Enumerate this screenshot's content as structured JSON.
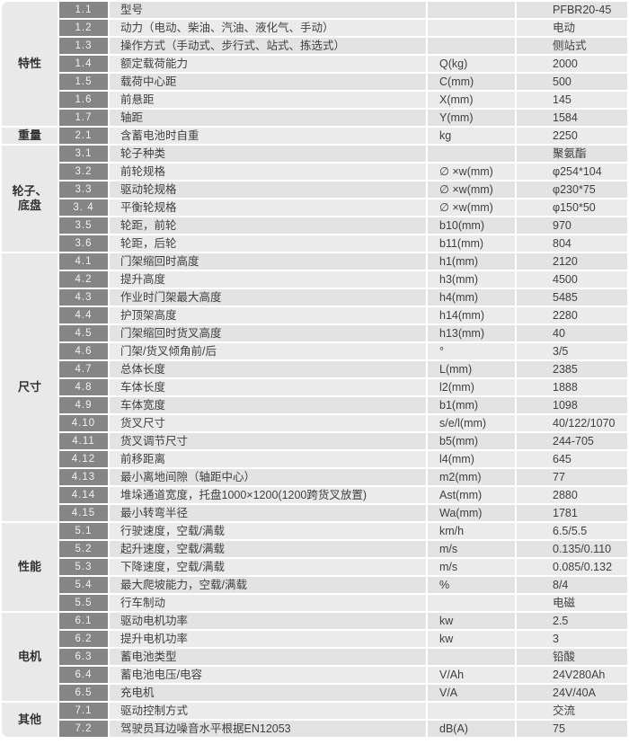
{
  "palette": {
    "row_dark": "#e3e3e3",
    "row_light": "#ebebeb",
    "category_bg": "#e9e9e9",
    "number_bg": "#858585",
    "number_text": "#f2f2f2",
    "text": "#3f3f3f",
    "page_bg": "#ffffff"
  },
  "spec_table": {
    "sections": [
      {
        "category": "特性",
        "rows": [
          {
            "no": "1.1",
            "desc": "型号",
            "unit": "",
            "value": "PFBR20-45"
          },
          {
            "no": "1.2",
            "desc": "动力（电动、柴油、汽油、液化气、手动）",
            "unit": "",
            "value": "电动"
          },
          {
            "no": "1.3",
            "desc": "操作方式（手动式、步行式、站式、拣选式）",
            "unit": "",
            "value": "侧站式"
          },
          {
            "no": "1.4",
            "desc": "额定载荷能力",
            "unit": "Q(kg)",
            "value": "2000"
          },
          {
            "no": "1.5",
            "desc": "载荷中心距",
            "unit": "C(mm)",
            "value": "500"
          },
          {
            "no": "1.6",
            "desc": "前悬距",
            "unit": "X(mm)",
            "value": "145"
          },
          {
            "no": "1.7",
            "desc": "轴距",
            "unit": "Y(mm)",
            "value": "1584"
          }
        ]
      },
      {
        "category": "重量",
        "rows": [
          {
            "no": "2.1",
            "desc": "含蓄电池时自重",
            "unit": "kg",
            "value": "2250"
          }
        ]
      },
      {
        "category": "轮子、\n底盘",
        "rows": [
          {
            "no": "3.1",
            "desc": "轮子种类",
            "unit": "",
            "value": "聚氨酯"
          },
          {
            "no": "3.2",
            "desc": "前轮规格",
            "unit": "∅ ×w(mm)",
            "value": "φ254*104"
          },
          {
            "no": "3.3",
            "desc": "驱动轮规格",
            "unit": "∅ ×w(mm)",
            "value": "φ230*75"
          },
          {
            "no": "3. 4",
            "desc": "平衡轮规格",
            "unit": "∅ ×w(mm)",
            "value": "φ150*50"
          },
          {
            "no": "3.5",
            "desc": "轮距，前轮",
            "unit": "b10(mm)",
            "value": "970"
          },
          {
            "no": "3.6",
            "desc": "轮距，后轮",
            "unit": "b11(mm)",
            "value": "804"
          }
        ]
      },
      {
        "category": "尺寸",
        "rows": [
          {
            "no": "4.1",
            "desc": "门架缩回时高度",
            "unit": "h1(mm)",
            "value": "2120"
          },
          {
            "no": "4.2",
            "desc": "提升高度",
            "unit": "h3(mm)",
            "value": "4500"
          },
          {
            "no": "4.3",
            "desc": "作业时门架最大高度",
            "unit": "h4(mm)",
            "value": "5485"
          },
          {
            "no": "4.4",
            "desc": "护顶架高度",
            "unit": "h14(mm)",
            "value": "2280"
          },
          {
            "no": "4.5",
            "desc": "门架缩回时货叉高度",
            "unit": "h13(mm)",
            "value": "40"
          },
          {
            "no": "4.6",
            "desc": "门架/货叉倾角前/后",
            "unit": "°",
            "value": "3/5"
          },
          {
            "no": "4.7",
            "desc": "总体长度",
            "unit": "L(mm)",
            "value": "2385"
          },
          {
            "no": "4.8",
            "desc": "车体长度",
            "unit": "l2(mm)",
            "value": "1888"
          },
          {
            "no": "4.9",
            "desc": "车体宽度",
            "unit": "b1(mm)",
            "value": "1098"
          },
          {
            "no": "4.10",
            "desc": "货叉尺寸",
            "unit": "s/e/l(mm)",
            "value": "40/122/1070"
          },
          {
            "no": "4.11",
            "desc": "货叉调节尺寸",
            "unit": "b5(mm)",
            "value": "244-705"
          },
          {
            "no": "4.12",
            "desc": "前移距离",
            "unit": "l4(mm)",
            "value": "645"
          },
          {
            "no": "4.13",
            "desc": "最小离地间隙（轴距中心）",
            "unit": "m2(mm)",
            "value": "77"
          },
          {
            "no": "4.14",
            "desc": "堆垛通道宽度，托盘1000×1200(1200跨货叉放置)",
            "unit": "Ast(mm)",
            "value": "2880"
          },
          {
            "no": "4.15",
            "desc": "最小转弯半径",
            "unit": "Wa(mm)",
            "value": "1781"
          }
        ]
      },
      {
        "category": "性能",
        "rows": [
          {
            "no": "5.1",
            "desc": "行驶速度，空载/满载",
            "unit": "km/h",
            "value": "6.5/5.5"
          },
          {
            "no": "5.2",
            "desc": "起升速度，空载/满载",
            "unit": "m/s",
            "value": "0.135/0.110"
          },
          {
            "no": "5.3",
            "desc": "下降速度，空载/满载",
            "unit": "m/s",
            "value": "0.085/0.132"
          },
          {
            "no": "5.4",
            "desc": "最大爬坡能力，空载/满载",
            "unit": "%",
            "value": "8/4"
          },
          {
            "no": "5.5",
            "desc": "行车制动",
            "unit": "",
            "value": "电磁"
          }
        ]
      },
      {
        "category": "电机",
        "rows": [
          {
            "no": "6.1",
            "desc": "驱动电机功率",
            "unit": "kw",
            "value": "2.5"
          },
          {
            "no": "6.2",
            "desc": "提升电机功率",
            "unit": "kw",
            "value": "3"
          },
          {
            "no": "6.3",
            "desc": "蓄电池类型",
            "unit": "",
            "value": "铅酸"
          },
          {
            "no": "6.4",
            "desc": "蓄电池电压/电容",
            "unit": "V/Ah",
            "value": "24V280Ah"
          },
          {
            "no": "6.5",
            "desc": "充电机",
            "unit": "V/A",
            "value": "24V/40A"
          }
        ]
      },
      {
        "category": "其他",
        "rows": [
          {
            "no": "7.1",
            "desc": "驱动控制方式",
            "unit": "",
            "value": "交流"
          },
          {
            "no": "7.2",
            "desc": "驾驶员耳边噪音水平根据EN12053",
            "unit": "dB(A)",
            "value": "75"
          }
        ]
      }
    ]
  }
}
